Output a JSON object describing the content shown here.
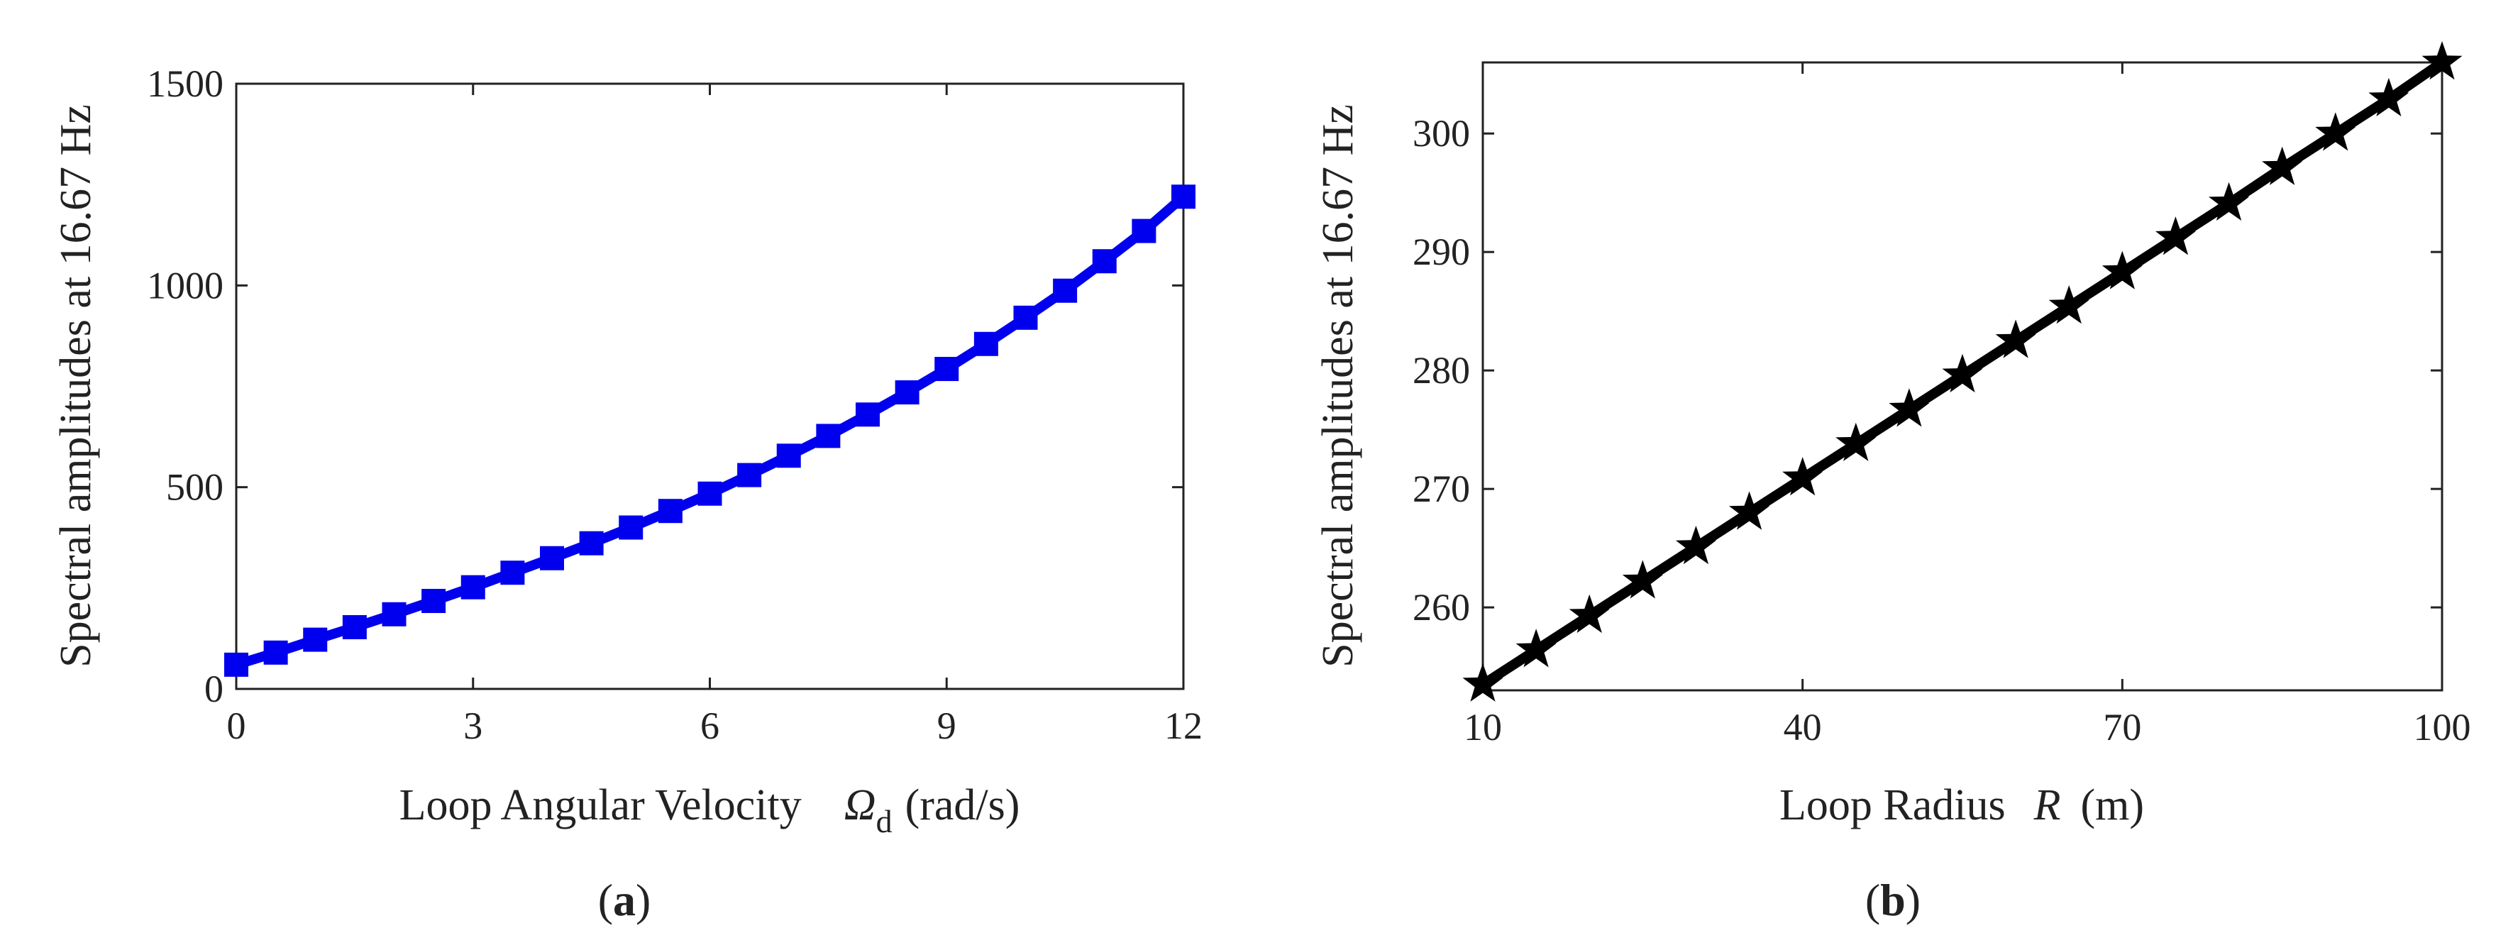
{
  "chart_data": [
    {
      "type": "line",
      "panel_label": "a",
      "xlabel": "Loop Angular Velocity",
      "xlabel_symbol": "Ω",
      "xlabel_symbol_subscript": "d",
      "xlabel_units": "(rad/s)",
      "ylabel": "Spectral amplitudes at 16.67 Hz",
      "xlim": [
        0,
        12
      ],
      "ylim": [
        0,
        1500
      ],
      "xticks": [
        0,
        3,
        6,
        9,
        12
      ],
      "yticks": [
        0,
        500,
        1000,
        1500
      ],
      "grid": false,
      "series": [
        {
          "color": "#0000ee",
          "marker": "square",
          "x": [
            0,
            0.5,
            1,
            1.5,
            2,
            2.5,
            3,
            3.5,
            4,
            4.5,
            5,
            5.5,
            6,
            6.5,
            7,
            7.5,
            8,
            8.5,
            9,
            9.5,
            10,
            10.5,
            11,
            11.5,
            12
          ],
          "y": [
            60,
            90,
            122,
            153,
            185,
            218,
            252,
            288,
            324,
            361,
            400,
            441,
            484,
            530,
            578,
            627,
            680,
            735,
            793,
            855,
            920,
            987,
            1060,
            1135,
            1220
          ]
        }
      ]
    },
    {
      "type": "line",
      "panel_label": "b",
      "xlabel": "Loop Radius",
      "xlabel_symbol": "R",
      "xlabel_units": "(m)",
      "ylabel": "Spectral amplitudes at 16.67 Hz",
      "xlim": [
        10,
        100
      ],
      "ylim": [
        253,
        306
      ],
      "xticks": [
        10,
        40,
        70,
        100
      ],
      "yticks": [
        260,
        270,
        280,
        290,
        300
      ],
      "grid": false,
      "series": [
        {
          "color": "#000000",
          "marker": "star",
          "x": [
            10,
            15,
            20,
            25,
            30,
            35,
            40,
            45,
            50,
            55,
            60,
            65,
            70,
            75,
            80,
            85,
            90,
            95,
            100
          ],
          "y": [
            253.5,
            256.4,
            259.3,
            262.2,
            265.1,
            268.0,
            270.9,
            273.8,
            276.7,
            279.6,
            282.5,
            285.4,
            288.3,
            291.2,
            294.1,
            297.1,
            300.0,
            302.9,
            306.0
          ]
        }
      ]
    }
  ]
}
